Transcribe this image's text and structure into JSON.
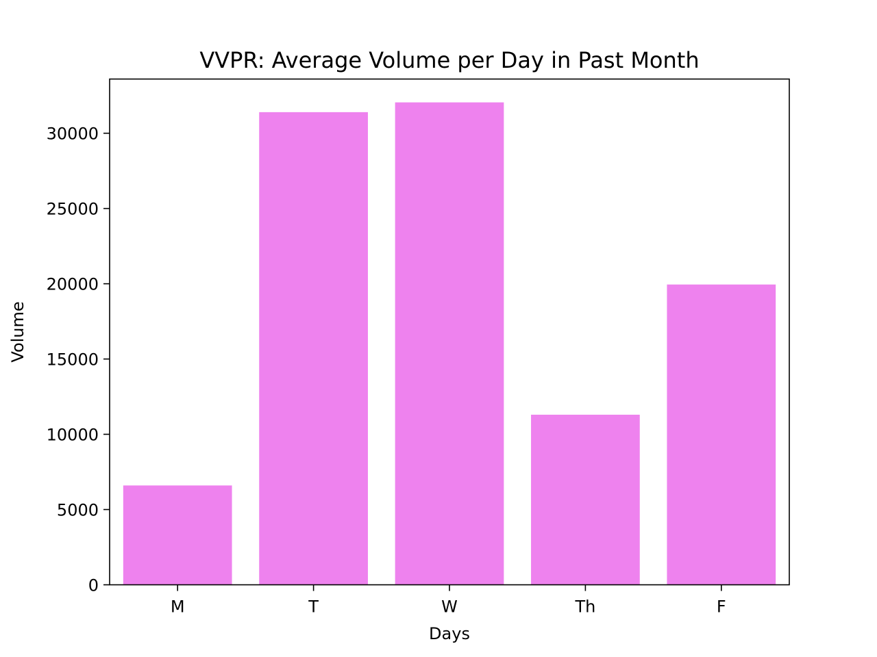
{
  "chart_data": {
    "type": "bar",
    "title": "VVPR: Average Volume per Day in Past Month",
    "xlabel": "Days",
    "ylabel": "Volume",
    "categories": [
      "M",
      "T",
      "W",
      "Th",
      "F"
    ],
    "values": [
      6600,
      31400,
      32050,
      11300,
      19950
    ],
    "ylim": [
      0,
      33600
    ],
    "yticks": [
      0,
      5000,
      10000,
      15000,
      20000,
      25000,
      30000
    ],
    "bar_color": "#ee82ee",
    "grid": false,
    "legend": "none"
  }
}
